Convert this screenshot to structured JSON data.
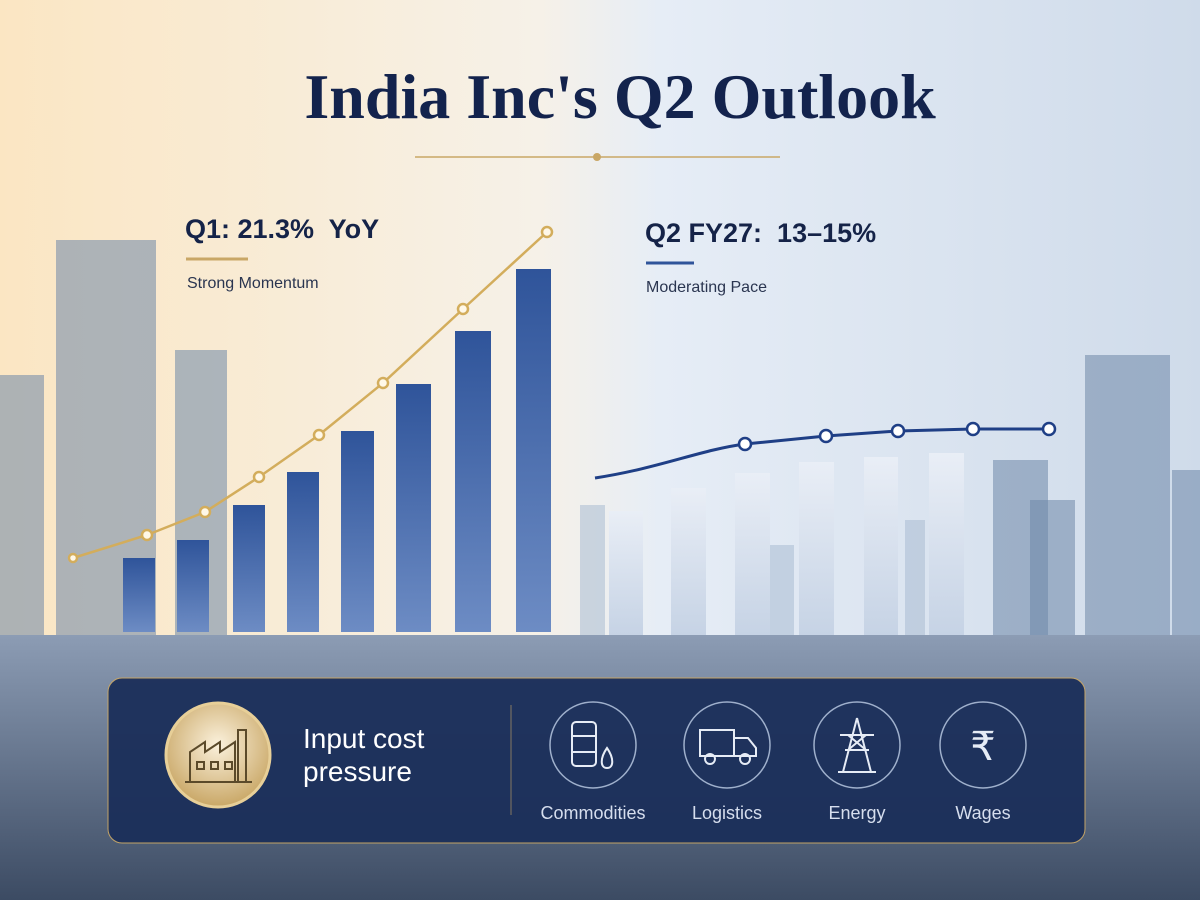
{
  "title": "India Inc's Q2 Outlook",
  "left_panel": {
    "heading": "Q1: 21.3%  YoY",
    "subheading": "Strong Momentum"
  },
  "right_panel": {
    "heading": "Q2 FY27:  13–15%",
    "subheading": "Moderating Pace"
  },
  "cost_panel": {
    "title_lines": [
      "Input cost",
      "pressure"
    ],
    "items": [
      "Commodities",
      "Logistics",
      "Energy",
      "Wages"
    ]
  }
}
